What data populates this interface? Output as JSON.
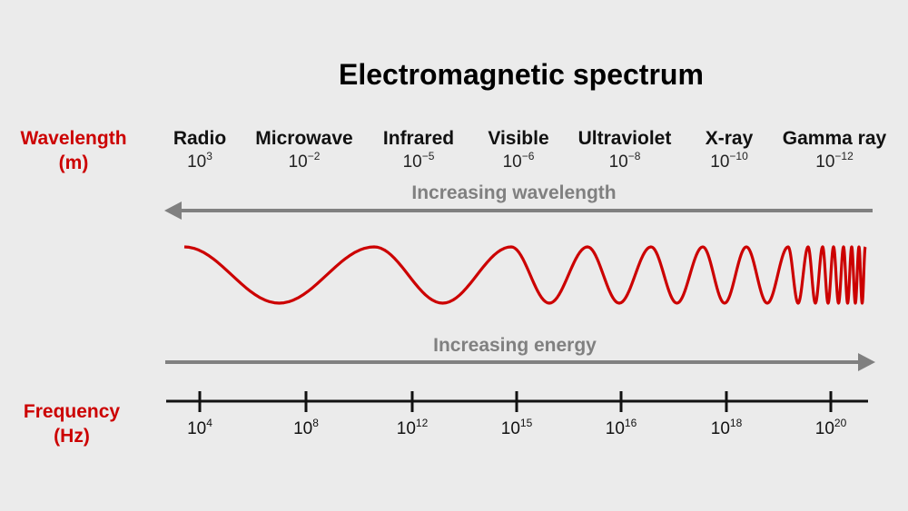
{
  "title": "Electromagnetic spectrum",
  "wavelength_label": {
    "line1": "Wavelength",
    "line2": "(m)"
  },
  "frequency_label": {
    "line1": "Frequency",
    "line2": "(Hz)"
  },
  "bands": [
    {
      "name": "Radio",
      "base": "10",
      "exp": "3"
    },
    {
      "name": "Microwave",
      "base": "10",
      "exp": "−2"
    },
    {
      "name": "Infrared",
      "base": "10",
      "exp": "−5"
    },
    {
      "name": "Visible",
      "base": "10",
      "exp": "−6"
    },
    {
      "name": "Ultraviolet",
      "base": "10",
      "exp": "−8"
    },
    {
      "name": "X-ray",
      "base": "10",
      "exp": "−10"
    },
    {
      "name": "Gamma ray",
      "base": "10",
      "exp": "−12"
    }
  ],
  "wavelength_arrow": {
    "text": "Increasing wavelength",
    "direction": "left"
  },
  "energy_arrow": {
    "text": "Increasing energy",
    "direction": "right"
  },
  "frequencies": [
    {
      "base": "10",
      "exp": "4"
    },
    {
      "base": "10",
      "exp": "8"
    },
    {
      "base": "10",
      "exp": "12"
    },
    {
      "base": "10",
      "exp": "15"
    },
    {
      "base": "10",
      "exp": "16"
    },
    {
      "base": "10",
      "exp": "18"
    },
    {
      "base": "10",
      "exp": "20"
    }
  ],
  "colors": {
    "accent": "#cc0000",
    "arrow": "#808080",
    "axis": "#111111",
    "background": "#ebebeb"
  }
}
